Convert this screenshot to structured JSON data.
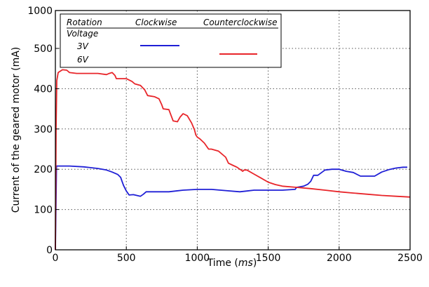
{
  "chart_data": {
    "type": "line",
    "xlabel": "Time",
    "xlabel_unit": "ms",
    "ylabel": "Current of the geared motor (mA)",
    "xlim": [
      0,
      2500
    ],
    "ylim": [
      0,
      1000
    ],
    "y_scale": "piecewise: 0-500 linear, top gridline labelled 1000",
    "x_ticks": [
      0,
      500,
      1000,
      1500,
      2000,
      2500
    ],
    "y_ticks": [
      0,
      100,
      200,
      300,
      400,
      500,
      1000
    ],
    "x_tick_labels": [
      "0",
      "500",
      "1000",
      "1500",
      "2000",
      "2500"
    ],
    "y_tick_labels": [
      "0",
      "100",
      "200",
      "300",
      "400",
      "500",
      "1000"
    ],
    "grid": true,
    "legend": {
      "placement": "top-left",
      "header_rotation": "Rotation",
      "header_clockwise": "Clockwise",
      "header_counterclockwise": "Counterclockwise",
      "header_voltage": "Voltage",
      "row_3v": "3V",
      "row_6v": "6V"
    },
    "series": [
      {
        "name": "3V",
        "rotation": "Clockwise",
        "color": "#1f1fd6",
        "x": [
          0,
          8,
          15,
          100,
          200,
          300,
          360,
          400,
          440,
          460,
          470,
          480,
          500,
          520,
          550,
          600,
          620,
          640,
          700,
          800,
          900,
          1000,
          1100,
          1200,
          1300,
          1350,
          1400,
          1500,
          1600,
          1690,
          1700,
          1750,
          1780,
          1800,
          1820,
          1850,
          1900,
          1950,
          2000,
          2050,
          2100,
          2150,
          2200,
          2250,
          2300,
          2350,
          2400,
          2450,
          2480
        ],
        "y": [
          0,
          208,
          208,
          208,
          206,
          202,
          198,
          193,
          187,
          180,
          170,
          160,
          146,
          136,
          137,
          133,
          138,
          144,
          144,
          144,
          148,
          150,
          150,
          147,
          144,
          146,
          148,
          148,
          148,
          150,
          155,
          158,
          163,
          170,
          185,
          185,
          198,
          200,
          200,
          195,
          192,
          183,
          183,
          183,
          193,
          199,
          203,
          205,
          205
        ]
      },
      {
        "name": "6V",
        "rotation": "Counterclockwise",
        "color": "#e8252a",
        "x": [
          0,
          5,
          10,
          20,
          50,
          80,
          100,
          150,
          200,
          300,
          360,
          380,
          400,
          420,
          430,
          500,
          540,
          560,
          600,
          630,
          650,
          700,
          730,
          750,
          760,
          800,
          830,
          860,
          880,
          900,
          930,
          960,
          980,
          990,
          1000,
          1020,
          1050,
          1080,
          1100,
          1150,
          1200,
          1220,
          1250,
          1280,
          1300,
          1310,
          1320,
          1330,
          1350,
          1400,
          1450,
          1500,
          1550,
          1600,
          1700,
          1800,
          1900,
          2000,
          2100,
          2200,
          2300,
          2400,
          2500
        ],
        "y": [
          0,
          300,
          420,
          440,
          447,
          446,
          440,
          438,
          438,
          438,
          435,
          438,
          440,
          433,
          425,
          425,
          418,
          412,
          408,
          397,
          383,
          380,
          375,
          360,
          350,
          348,
          320,
          318,
          330,
          338,
          333,
          315,
          298,
          285,
          280,
          275,
          265,
          250,
          250,
          245,
          230,
          215,
          210,
          205,
          200,
          198,
          195,
          198,
          198,
          188,
          178,
          168,
          162,
          158,
          155,
          152,
          148,
          144,
          141,
          138,
          135,
          133,
          131
        ]
      }
    ]
  }
}
